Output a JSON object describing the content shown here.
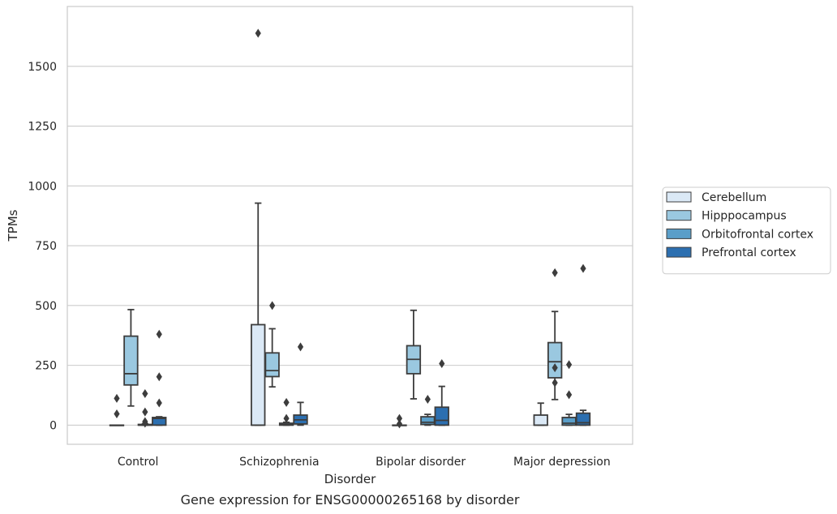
{
  "chart_data": {
    "type": "box",
    "caption": "Gene expression for ENSG00000265168 by disorder",
    "xlabel": "Disorder",
    "ylabel": "TPMs",
    "ylim": [
      -80,
      1750
    ],
    "yticks": [
      0,
      250,
      500,
      750,
      1000,
      1250,
      1500
    ],
    "grid": true,
    "legend_position": "right",
    "categories": [
      "Control",
      "Schizophrenia",
      "Bipolar disorder",
      "Major depression"
    ],
    "series": [
      {
        "name": "Cerebellum",
        "color": "#dbe9f6",
        "boxes": [
          {
            "whislo": 0,
            "q1": 0,
            "med": 0,
            "q3": 0,
            "whishi": 0,
            "fliers": [
              112,
              47
            ]
          },
          {
            "whislo": 0,
            "q1": 0,
            "med": 0,
            "q3": 420,
            "whishi": 928,
            "fliers": [
              1638
            ]
          },
          {
            "whislo": 0,
            "q1": 0,
            "med": 0,
            "q3": 0,
            "whishi": 0,
            "fliers": [
              28,
              5
            ]
          },
          {
            "whislo": 0,
            "q1": 0,
            "med": 0,
            "q3": 42,
            "whishi": 92,
            "fliers": []
          }
        ]
      },
      {
        "name": "Hipppocampus",
        "color": "#9ac8e0",
        "boxes": [
          {
            "whislo": 80,
            "q1": 168,
            "med": 215,
            "q3": 372,
            "whishi": 483,
            "fliers": []
          },
          {
            "whislo": 160,
            "q1": 203,
            "med": 228,
            "q3": 302,
            "whishi": 403,
            "fliers": [
              500
            ]
          },
          {
            "whislo": 110,
            "q1": 215,
            "med": 275,
            "q3": 332,
            "whishi": 480,
            "fliers": []
          },
          {
            "whislo": 107,
            "q1": 198,
            "med": 265,
            "q3": 345,
            "whishi": 475,
            "fliers": [
              637,
              240,
              177
            ]
          }
        ]
      },
      {
        "name": "Orbitofrontal cortex",
        "color": "#5a9ec9",
        "boxes": [
          {
            "whislo": 0,
            "q1": 0,
            "med": 0,
            "q3": 3,
            "whishi": 5,
            "fliers": [
              132,
              55,
              15,
              8
            ]
          },
          {
            "whislo": 0,
            "q1": 0,
            "med": 2,
            "q3": 8,
            "whishi": 12,
            "fliers": [
              95,
              28
            ]
          },
          {
            "whislo": 0,
            "q1": 3,
            "med": 12,
            "q3": 35,
            "whishi": 45,
            "fliers": [
              108
            ]
          },
          {
            "whislo": 0,
            "q1": 0,
            "med": 8,
            "q3": 32,
            "whishi": 45,
            "fliers": [
              253,
              127
            ]
          }
        ]
      },
      {
        "name": "Prefrontal cortex",
        "color": "#2c6fb0",
        "boxes": [
          {
            "whislo": 0,
            "q1": 0,
            "med": 28,
            "q3": 32,
            "whishi": 35,
            "fliers": [
              380,
              202,
              93
            ]
          },
          {
            "whislo": 0,
            "q1": 5,
            "med": 22,
            "q3": 42,
            "whishi": 95,
            "fliers": [
              327
            ]
          },
          {
            "whislo": 0,
            "q1": 0,
            "med": 20,
            "q3": 75,
            "whishi": 162,
            "fliers": [
              257
            ]
          },
          {
            "whislo": 0,
            "q1": 0,
            "med": 10,
            "q3": 50,
            "whishi": 62,
            "fliers": [
              655
            ]
          }
        ]
      }
    ]
  }
}
